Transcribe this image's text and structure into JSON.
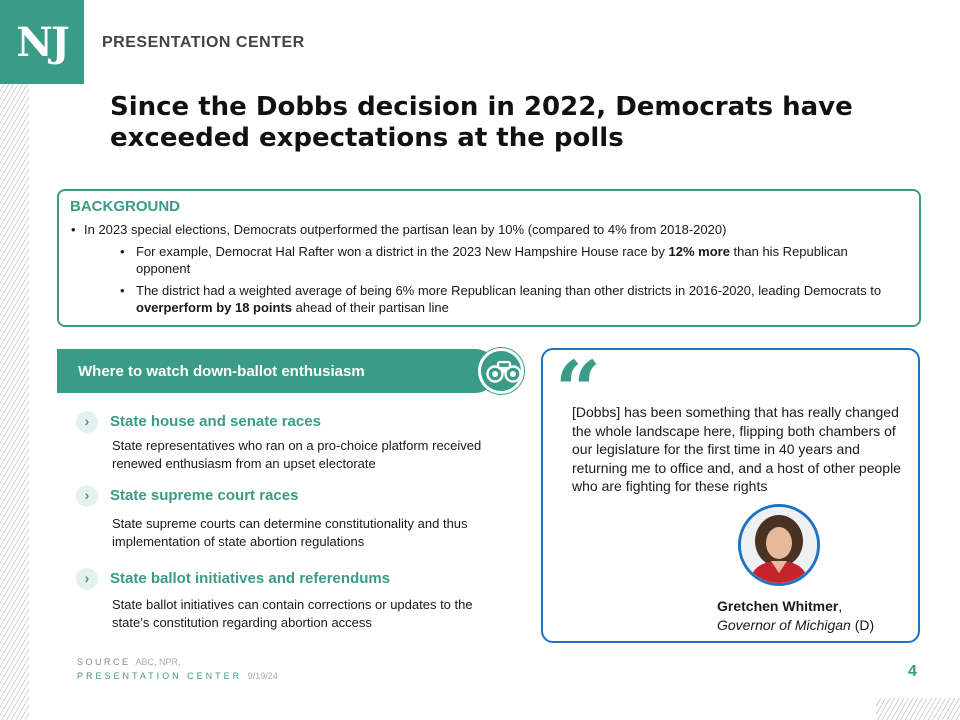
{
  "header": {
    "logo_text": "NJ",
    "brand": "PRESENTATION CENTER"
  },
  "title": "Since the Dobbs decision in 2022, Democrats have exceeded expectations at the polls",
  "background": {
    "heading": "BACKGROUND",
    "bullet1": "In 2023 special elections, Democrats outperformed the partisan lean by 10% (compared to 4% from 2018-2020)",
    "sub1": {
      "pre": "For example, Democrat Hal Rafter won a district in the 2023 New Hampshire House race by ",
      "bold": "12% more",
      "post": " than his Republican opponent"
    },
    "sub2": {
      "pre": "The district had a weighted average of being 6% more Republican leaning than other districts in 2016-2020, leading Democrats to ",
      "bold": "overperform by 18 points",
      "post": " ahead of their partisan line"
    }
  },
  "watch": {
    "heading": "Where to watch down-ballot enthusiasm",
    "icon": "binoculars-icon",
    "chevron": "›",
    "items": [
      {
        "title": "State house and senate races",
        "desc": "State representatives who ran on a pro-choice platform received renewed enthusiasm from an upset electorate"
      },
      {
        "title": "State supreme court races",
        "desc": "State supreme courts can determine constitutionality and thus implementation of state abortion regulations"
      },
      {
        "title": "State ballot initiatives and referendums",
        "desc": "State ballot initiatives can contain corrections or updates to the state’s constitution regarding abortion access"
      }
    ]
  },
  "quote": {
    "mark": "“",
    "text": "[Dobbs] has been something that has really changed the whole landscape here, flipping both chambers of our legislature for the first time in 40 years and returning me to office and, and a host of other people who are fighting for these rights",
    "name": "Gretchen Whitmer",
    "name_suffix": ",",
    "role": "Governor of Michigan",
    "party": " (D)"
  },
  "footer": {
    "source_label": "SOURCE",
    "source_value": "ABC, NPR,",
    "center_label": "PRESENTATION CENTER",
    "date": "9/19/24",
    "page": "4"
  },
  "colors": {
    "teal": "#3a9b86",
    "blue": "#1f73c4"
  }
}
